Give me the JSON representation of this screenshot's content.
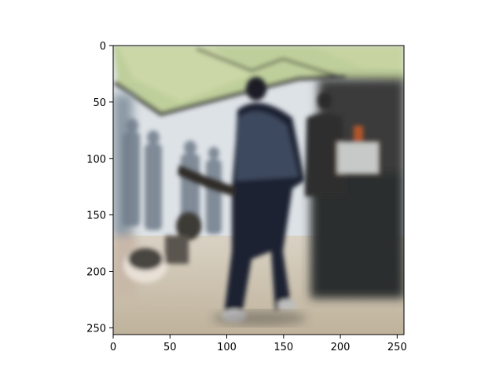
{
  "chart_data": {
    "type": "image",
    "title": "",
    "xlabel": "",
    "ylabel": "",
    "xlim": [
      0,
      256
    ],
    "ylim": [
      256,
      0
    ],
    "x_ticks": [
      0,
      50,
      100,
      150,
      200,
      250
    ],
    "y_ticks": [
      0,
      50,
      100,
      150,
      200,
      250
    ],
    "grid": false,
    "legend": "none"
  },
  "image": {
    "description_colors": {
      "canopy": "#b9c99a",
      "sky": "#dfe4ea",
      "person": "#1e2530",
      "shadow": "#2b2e30",
      "ground": "#cbbfae"
    }
  }
}
